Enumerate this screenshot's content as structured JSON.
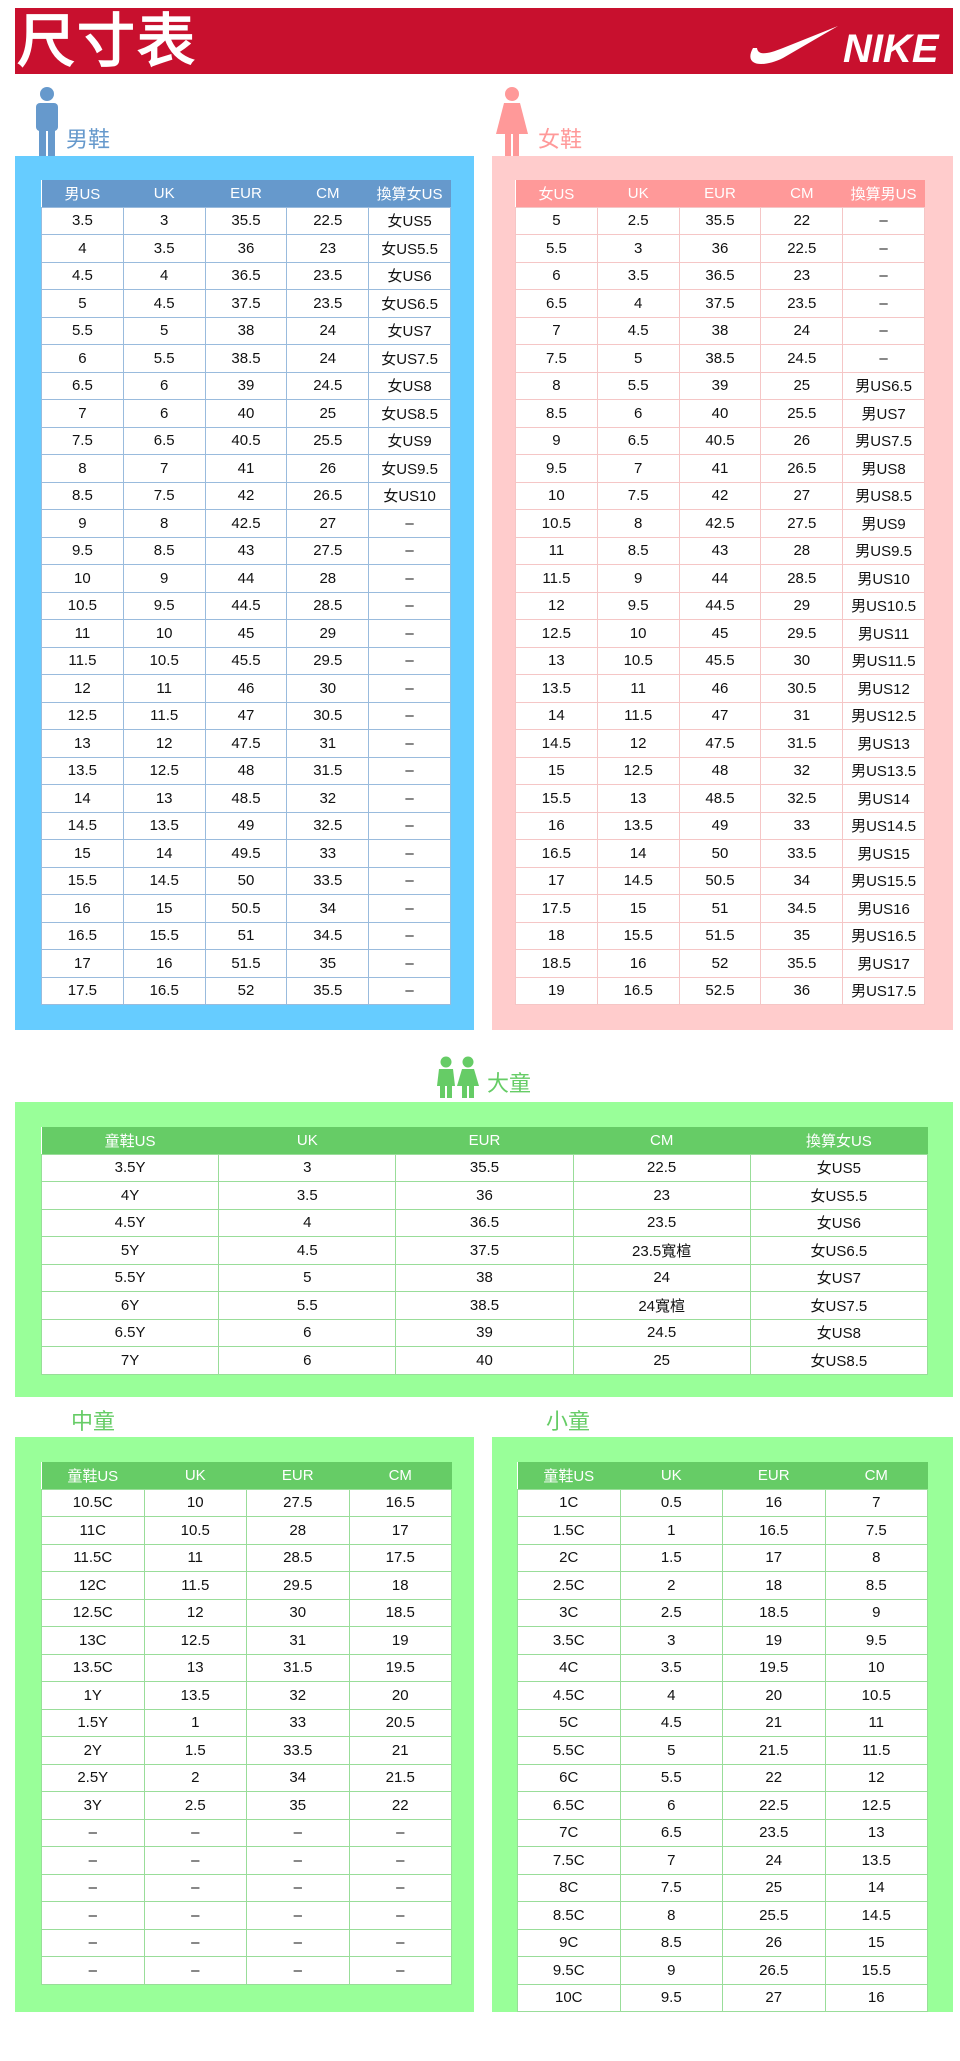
{
  "header": {
    "title": "尺寸表",
    "brand": "NIKE",
    "brand_color": "#c8102e"
  },
  "men": {
    "label": "男鞋",
    "icon": "man-icon",
    "color": "#66ccff",
    "header_color": "#6699cc",
    "columns": [
      "男US",
      "UK",
      "EUR",
      "CM",
      "換算女US"
    ],
    "rows": [
      [
        "3.5",
        "3",
        "35.5",
        "22.5",
        "女US5"
      ],
      [
        "4",
        "3.5",
        "36",
        "23",
        "女US5.5"
      ],
      [
        "4.5",
        "4",
        "36.5",
        "23.5",
        "女US6"
      ],
      [
        "5",
        "4.5",
        "37.5",
        "23.5",
        "女US6.5"
      ],
      [
        "5.5",
        "5",
        "38",
        "24",
        "女US7"
      ],
      [
        "6",
        "5.5",
        "38.5",
        "24",
        "女US7.5"
      ],
      [
        "6.5",
        "6",
        "39",
        "24.5",
        "女US8"
      ],
      [
        "7",
        "6",
        "40",
        "25",
        "女US8.5"
      ],
      [
        "7.5",
        "6.5",
        "40.5",
        "25.5",
        "女US9"
      ],
      [
        "8",
        "7",
        "41",
        "26",
        "女US9.5"
      ],
      [
        "8.5",
        "7.5",
        "42",
        "26.5",
        "女US10"
      ],
      [
        "9",
        "8",
        "42.5",
        "27",
        "–"
      ],
      [
        "9.5",
        "8.5",
        "43",
        "27.5",
        "–"
      ],
      [
        "10",
        "9",
        "44",
        "28",
        "–"
      ],
      [
        "10.5",
        "9.5",
        "44.5",
        "28.5",
        "–"
      ],
      [
        "11",
        "10",
        "45",
        "29",
        "–"
      ],
      [
        "11.5",
        "10.5",
        "45.5",
        "29.5",
        "–"
      ],
      [
        "12",
        "11",
        "46",
        "30",
        "–"
      ],
      [
        "12.5",
        "11.5",
        "47",
        "30.5",
        "–"
      ],
      [
        "13",
        "12",
        "47.5",
        "31",
        "–"
      ],
      [
        "13.5",
        "12.5",
        "48",
        "31.5",
        "–"
      ],
      [
        "14",
        "13",
        "48.5",
        "32",
        "–"
      ],
      [
        "14.5",
        "13.5",
        "49",
        "32.5",
        "–"
      ],
      [
        "15",
        "14",
        "49.5",
        "33",
        "–"
      ],
      [
        "15.5",
        "14.5",
        "50",
        "33.5",
        "–"
      ],
      [
        "16",
        "15",
        "50.5",
        "34",
        "–"
      ],
      [
        "16.5",
        "15.5",
        "51",
        "34.5",
        "–"
      ],
      [
        "17",
        "16",
        "51.5",
        "35",
        "–"
      ],
      [
        "17.5",
        "16.5",
        "52",
        "35.5",
        "–"
      ]
    ]
  },
  "women": {
    "label": "女鞋",
    "icon": "woman-icon",
    "color": "#ffcccc",
    "header_color": "#ff9999",
    "columns": [
      "女US",
      "UK",
      "EUR",
      "CM",
      "換算男US"
    ],
    "rows": [
      [
        "5",
        "2.5",
        "35.5",
        "22",
        "–"
      ],
      [
        "5.5",
        "3",
        "36",
        "22.5",
        "–"
      ],
      [
        "6",
        "3.5",
        "36.5",
        "23",
        "–"
      ],
      [
        "6.5",
        "4",
        "37.5",
        "23.5",
        "–"
      ],
      [
        "7",
        "4.5",
        "38",
        "24",
        "–"
      ],
      [
        "7.5",
        "5",
        "38.5",
        "24.5",
        "–"
      ],
      [
        "8",
        "5.5",
        "39",
        "25",
        "男US6.5"
      ],
      [
        "8.5",
        "6",
        "40",
        "25.5",
        "男US7"
      ],
      [
        "9",
        "6.5",
        "40.5",
        "26",
        "男US7.5"
      ],
      [
        "9.5",
        "7",
        "41",
        "26.5",
        "男US8"
      ],
      [
        "10",
        "7.5",
        "42",
        "27",
        "男US8.5"
      ],
      [
        "10.5",
        "8",
        "42.5",
        "27.5",
        "男US9"
      ],
      [
        "11",
        "8.5",
        "43",
        "28",
        "男US9.5"
      ],
      [
        "11.5",
        "9",
        "44",
        "28.5",
        "男US10"
      ],
      [
        "12",
        "9.5",
        "44.5",
        "29",
        "男US10.5"
      ],
      [
        "12.5",
        "10",
        "45",
        "29.5",
        "男US11"
      ],
      [
        "13",
        "10.5",
        "45.5",
        "30",
        "男US11.5"
      ],
      [
        "13.5",
        "11",
        "46",
        "30.5",
        "男US12"
      ],
      [
        "14",
        "11.5",
        "47",
        "31",
        "男US12.5"
      ],
      [
        "14.5",
        "12",
        "47.5",
        "31.5",
        "男US13"
      ],
      [
        "15",
        "12.5",
        "48",
        "32",
        "男US13.5"
      ],
      [
        "15.5",
        "13",
        "48.5",
        "32.5",
        "男US14"
      ],
      [
        "16",
        "13.5",
        "49",
        "33",
        "男US14.5"
      ],
      [
        "16.5",
        "14",
        "50",
        "33.5",
        "男US15"
      ],
      [
        "17",
        "14.5",
        "50.5",
        "34",
        "男US15.5"
      ],
      [
        "17.5",
        "15",
        "51",
        "34.5",
        "男US16"
      ],
      [
        "18",
        "15.5",
        "51.5",
        "35",
        "男US16.5"
      ],
      [
        "18.5",
        "16",
        "52",
        "35.5",
        "男US17"
      ],
      [
        "19",
        "16.5",
        "52.5",
        "36",
        "男US17.5"
      ]
    ]
  },
  "big_kids": {
    "label": "大童",
    "icon": "children-icon",
    "color": "#99ff99",
    "header_color": "#66cc66",
    "columns": [
      "童鞋US",
      "UK",
      "EUR",
      "CM",
      "換算女US"
    ],
    "rows": [
      [
        "3.5Y",
        "3",
        "35.5",
        "22.5",
        "女US5"
      ],
      [
        "4Y",
        "3.5",
        "36",
        "23",
        "女US5.5"
      ],
      [
        "4.5Y",
        "4",
        "36.5",
        "23.5",
        "女US6"
      ],
      [
        "5Y",
        "4.5",
        "37.5",
        "23.5寬楦",
        "女US6.5"
      ],
      [
        "5.5Y",
        "5",
        "38",
        "24",
        "女US7"
      ],
      [
        "6Y",
        "5.5",
        "38.5",
        "24寬楦",
        "女US7.5"
      ],
      [
        "6.5Y",
        "6",
        "39",
        "24.5",
        "女US8"
      ],
      [
        "7Y",
        "6",
        "40",
        "25",
        "女US8.5"
      ]
    ]
  },
  "mid_kids": {
    "label": "中童",
    "columns": [
      "童鞋US",
      "UK",
      "EUR",
      "CM"
    ],
    "rows": [
      [
        "10.5C",
        "10",
        "27.5",
        "16.5"
      ],
      [
        "11C",
        "10.5",
        "28",
        "17"
      ],
      [
        "11.5C",
        "11",
        "28.5",
        "17.5"
      ],
      [
        "12C",
        "11.5",
        "29.5",
        "18"
      ],
      [
        "12.5C",
        "12",
        "30",
        "18.5"
      ],
      [
        "13C",
        "12.5",
        "31",
        "19"
      ],
      [
        "13.5C",
        "13",
        "31.5",
        "19.5"
      ],
      [
        "1Y",
        "13.5",
        "32",
        "20"
      ],
      [
        "1.5Y",
        "1",
        "33",
        "20.5"
      ],
      [
        "2Y",
        "1.5",
        "33.5",
        "21"
      ],
      [
        "2.5Y",
        "2",
        "34",
        "21.5"
      ],
      [
        "3Y",
        "2.5",
        "35",
        "22"
      ],
      [
        "–",
        "–",
        "–",
        "–"
      ],
      [
        "–",
        "–",
        "–",
        "–"
      ],
      [
        "–",
        "–",
        "–",
        "–"
      ],
      [
        "–",
        "–",
        "–",
        "–"
      ],
      [
        "–",
        "–",
        "–",
        "–"
      ],
      [
        "–",
        "–",
        "–",
        "–"
      ]
    ]
  },
  "small_kids": {
    "label": "小童",
    "columns": [
      "童鞋US",
      "UK",
      "EUR",
      "CM"
    ],
    "rows": [
      [
        "1C",
        "0.5",
        "16",
        "7"
      ],
      [
        "1.5C",
        "1",
        "16.5",
        "7.5"
      ],
      [
        "2C",
        "1.5",
        "17",
        "8"
      ],
      [
        "2.5C",
        "2",
        "18",
        "8.5"
      ],
      [
        "3C",
        "2.5",
        "18.5",
        "9"
      ],
      [
        "3.5C",
        "3",
        "19",
        "9.5"
      ],
      [
        "4C",
        "3.5",
        "19.5",
        "10"
      ],
      [
        "4.5C",
        "4",
        "20",
        "10.5"
      ],
      [
        "5C",
        "4.5",
        "21",
        "11"
      ],
      [
        "5.5C",
        "5",
        "21.5",
        "11.5"
      ],
      [
        "6C",
        "5.5",
        "22",
        "12"
      ],
      [
        "6.5C",
        "6",
        "22.5",
        "12.5"
      ],
      [
        "7C",
        "6.5",
        "23.5",
        "13"
      ],
      [
        "7.5C",
        "7",
        "24",
        "13.5"
      ],
      [
        "8C",
        "7.5",
        "25",
        "14"
      ],
      [
        "8.5C",
        "8",
        "25.5",
        "14.5"
      ],
      [
        "9C",
        "8.5",
        "26",
        "15"
      ],
      [
        "9.5C",
        "9",
        "26.5",
        "15.5"
      ],
      [
        "10C",
        "9.5",
        "27",
        "16"
      ]
    ]
  }
}
